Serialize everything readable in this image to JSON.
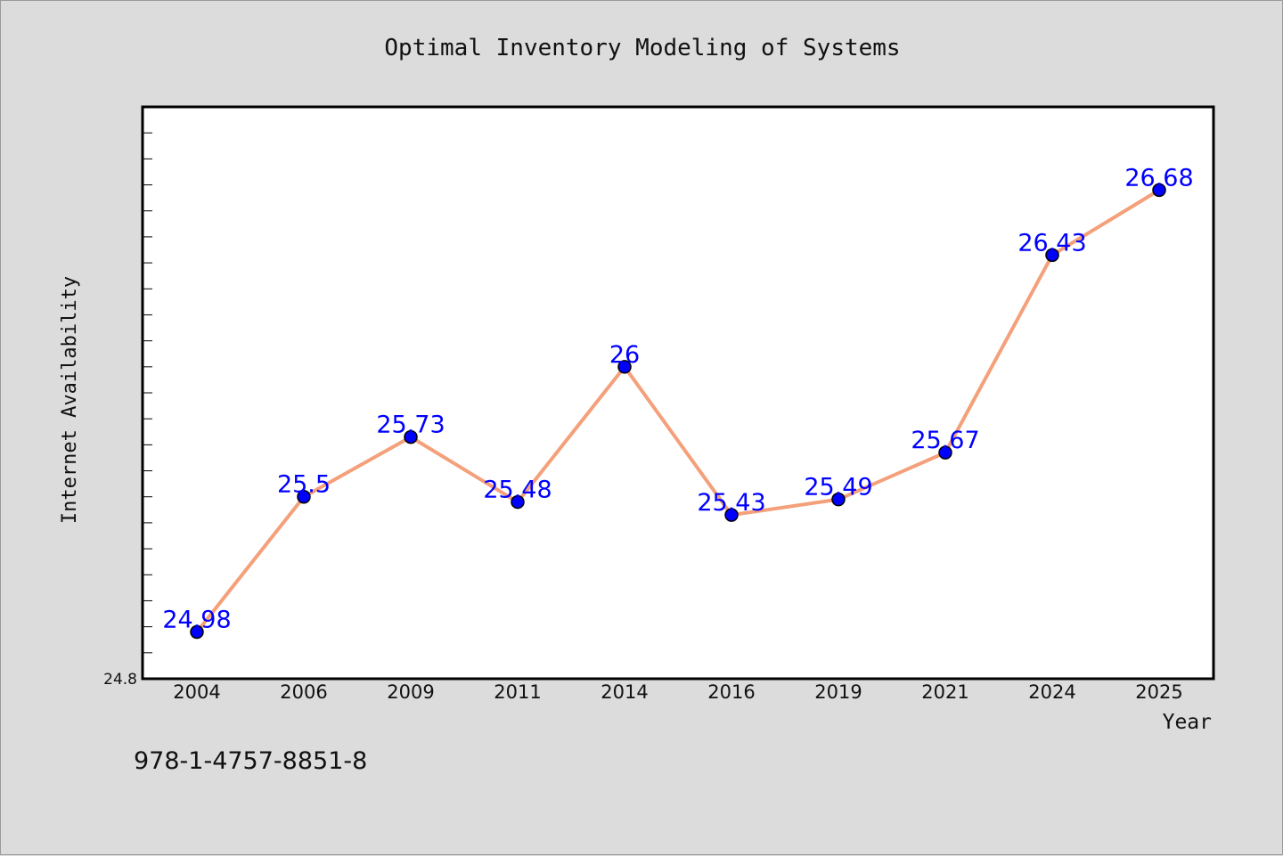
{
  "chart_data": {
    "type": "line",
    "title": "Optimal Inventory Modeling of Systems",
    "xlabel": "Year",
    "ylabel": "Internet Availability",
    "categories": [
      "2004",
      "2006",
      "2009",
      "2011",
      "2014",
      "2016",
      "2019",
      "2021",
      "2024",
      "2025"
    ],
    "series": [
      {
        "values": [
          24.98,
          25.5,
          25.73,
          25.48,
          26,
          25.43,
          25.49,
          25.67,
          26.43,
          26.68
        ],
        "data_labels": [
          "24.98",
          "25.5",
          "25.73",
          "25.48",
          "26",
          "25.43",
          "25.49",
          "25.67",
          "26.43",
          "26.68"
        ]
      }
    ],
    "ylim": [
      24.8,
      27.0
    ],
    "y_tick_labels": [
      "24.8"
    ],
    "grid": false,
    "colors": {
      "line": "#f4a07a",
      "marker": "#0000ff",
      "data_label": "#0000ff",
      "plot_background": "#ffffff",
      "figure_background": "#dcdcdc"
    }
  },
  "footer": {
    "isbn": "978-1-4757-8851-8"
  }
}
